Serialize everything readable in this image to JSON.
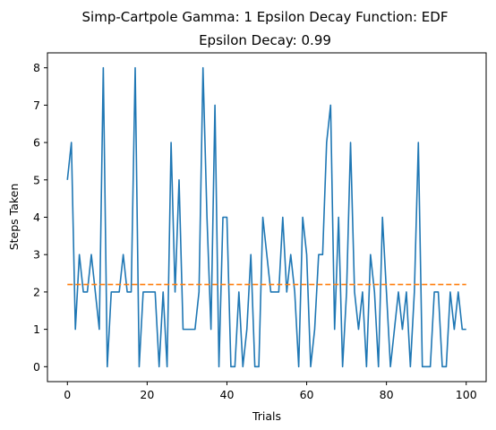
{
  "chart_data": {
    "type": "line",
    "title": "Simp-Cartpole Gamma: 1 Epsilon Decay Function: EDF",
    "subtitle": "Epsilon Decay: 0.99",
    "xlabel": "Trials",
    "ylabel": "Steps Taken",
    "xlim": [
      -5,
      105
    ],
    "ylim": [
      -0.4,
      8.4
    ],
    "xticks": [
      0,
      20,
      40,
      60,
      80,
      100
    ],
    "yticks": [
      0,
      1,
      2,
      3,
      4,
      5,
      6,
      7,
      8
    ],
    "grid": false,
    "series": [
      {
        "color": "#1f77b4",
        "style": "solid",
        "x": [
          0,
          1,
          2,
          3,
          4,
          5,
          6,
          7,
          8,
          9,
          10,
          11,
          12,
          13,
          14,
          15,
          16,
          17,
          18,
          19,
          20,
          21,
          22,
          23,
          24,
          25,
          26,
          27,
          28,
          29,
          30,
          31,
          32,
          33,
          34,
          35,
          36,
          37,
          38,
          39,
          40,
          41,
          42,
          43,
          44,
          45,
          46,
          47,
          48,
          49,
          50,
          51,
          52,
          53,
          54,
          55,
          56,
          57,
          58,
          59,
          60,
          61,
          62,
          63,
          64,
          65,
          66,
          67,
          68,
          69,
          70,
          71,
          72,
          73,
          74,
          75,
          76,
          77,
          78,
          79,
          80,
          81,
          82,
          83,
          84,
          85,
          86,
          87,
          88,
          89,
          90,
          91,
          92,
          93,
          94,
          95,
          96,
          97,
          98,
          99,
          100
        ],
        "values": [
          5,
          6,
          1,
          3,
          2,
          2,
          3,
          2,
          1,
          8,
          0,
          2,
          2,
          2,
          3,
          2,
          2,
          8,
          0,
          2,
          2,
          2,
          2,
          0,
          2,
          0,
          6,
          2,
          5,
          1,
          1,
          1,
          1,
          2,
          8,
          4,
          1,
          7,
          0,
          4,
          4,
          0,
          0,
          2,
          0,
          1,
          3,
          0,
          0,
          4,
          3,
          2,
          2,
          2,
          4,
          2,
          3,
          2,
          0,
          4,
          3,
          0,
          1,
          3,
          3,
          6,
          7,
          1,
          4,
          0,
          2,
          6,
          2,
          1,
          2,
          0,
          3,
          2,
          0,
          4,
          2,
          0,
          1,
          2,
          1,
          2,
          0,
          2,
          6,
          0,
          0,
          0,
          2,
          2,
          0,
          0,
          2,
          1,
          2,
          1,
          1
        ]
      },
      {
        "color": "#ff7f0e",
        "style": "dashed",
        "x": [
          0,
          100
        ],
        "values": [
          2.2,
          2.2
        ]
      }
    ]
  }
}
